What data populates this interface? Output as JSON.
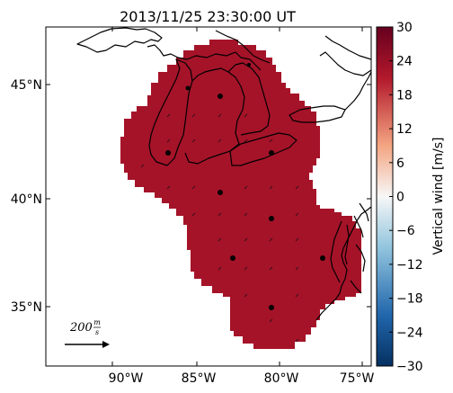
{
  "title": "2013/11/25 23:30:00 UT",
  "map": {
    "lat_ticks": [
      "45°N",
      "40°N",
      "35°N"
    ],
    "lon_ticks": [
      "90°W",
      "85°W",
      "80°W",
      "75°W"
    ],
    "field_color": "#a51329",
    "scale_arrow_label_value": "200",
    "scale_arrow_label_unit_num": "m",
    "scale_arrow_label_unit_den": "s"
  },
  "colorbar": {
    "label": "Vertical wind [m/s]",
    "ticks": [
      "30",
      "24",
      "18",
      "12",
      "6",
      "0",
      "−6",
      "−12",
      "−18",
      "−24",
      "−30"
    ],
    "range": [
      -30,
      30
    ],
    "colors": {
      "top": "#67001f",
      "upper": "#b2182b",
      "upper_mid": "#f4a582",
      "mid": "#f7f7f7",
      "lower_mid": "#92c5de",
      "lower": "#2166ac",
      "bottom": "#053061"
    }
  }
}
